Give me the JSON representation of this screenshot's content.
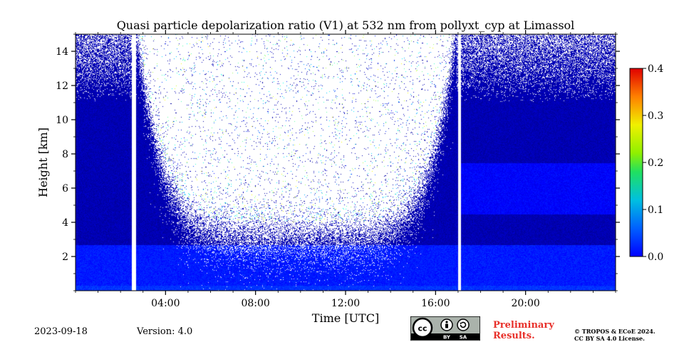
{
  "chart_data": {
    "type": "heatmap",
    "title": "Quasi particle depolarization ratio (V1) at 532 nm from pollyxt_cyp at Limassol",
    "xlabel": "Time [UTC]",
    "ylabel": "Height [km]",
    "xlim_hours": [
      0,
      24
    ],
    "ylim_km": [
      0,
      15
    ],
    "x_ticks": [
      {
        "hour": 4,
        "label": "04:00"
      },
      {
        "hour": 8,
        "label": "08:00"
      },
      {
        "hour": 12,
        "label": "12:00"
      },
      {
        "hour": 16,
        "label": "16:00"
      },
      {
        "hour": 20,
        "label": "20:00"
      }
    ],
    "y_ticks": [
      2,
      4,
      6,
      8,
      10,
      12,
      14
    ],
    "colorbar": {
      "range": [
        0.0,
        0.4
      ],
      "ticks": [
        "0.0",
        "0.1",
        "0.2",
        "0.3",
        "0.4"
      ],
      "colormap": "jet"
    },
    "data_gaps_hours": [
      [
        2.5,
        2.67
      ],
      [
        16.98,
        17.12
      ]
    ],
    "daytime_no_signal": {
      "start_hour": 2.7,
      "end_hour": 16.9,
      "min_height_km_at_noon": 3.0,
      "max_height_km_edges": 15
    },
    "layers": [
      {
        "name": "near-surface",
        "height_km": [
          0,
          0.3
        ],
        "value": 0.07
      },
      {
        "name": "boundary layer",
        "height_km": [
          0.3,
          2.7
        ],
        "value": 0.06
      },
      {
        "name": "free troposphere",
        "height_km": [
          2.7,
          15
        ],
        "value": 0.02
      },
      {
        "name": "evening lofted layer",
        "height_km": [
          4.5,
          7.5
        ],
        "hours": [
          17,
          24
        ],
        "value": 0.05
      }
    ]
  },
  "footer": {
    "date": "2023-09-18",
    "version": "Version: 4.0",
    "license_badge": {
      "cc": "cc",
      "by": "BY",
      "sa": "SA"
    },
    "preliminary_line1": "Preliminary",
    "preliminary_line2": "Results.",
    "copyright_line1": "© TROPOS & ECoE 2024.",
    "copyright_line2": "CC BY SA 4.0 License."
  },
  "colors": {
    "preliminary": "#e8302a",
    "background_signal": "#1a5fd6"
  }
}
